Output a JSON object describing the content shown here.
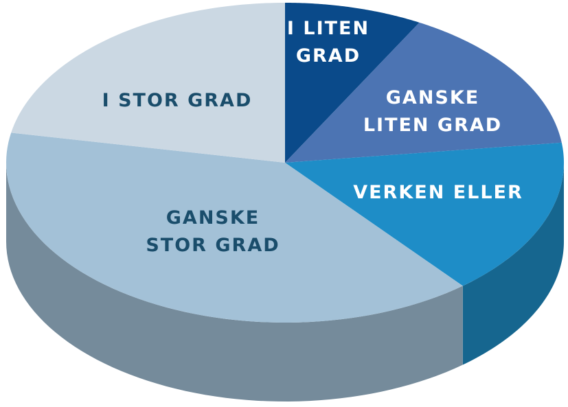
{
  "chart_data": {
    "type": "pie3d",
    "categories": [
      "I LITEN GRAD",
      "GANSKE LITEN GRAD",
      "VERKEN ELLER",
      "GANSKE STOR GRAD",
      "I STOR GRAD"
    ],
    "values": [
      8,
      15,
      16,
      39,
      22
    ],
    "colors": [
      "#0a4a8a",
      "#4c74b3",
      "#1e8dc7",
      "#a3c1d7",
      "#cbd8e3"
    ]
  }
}
